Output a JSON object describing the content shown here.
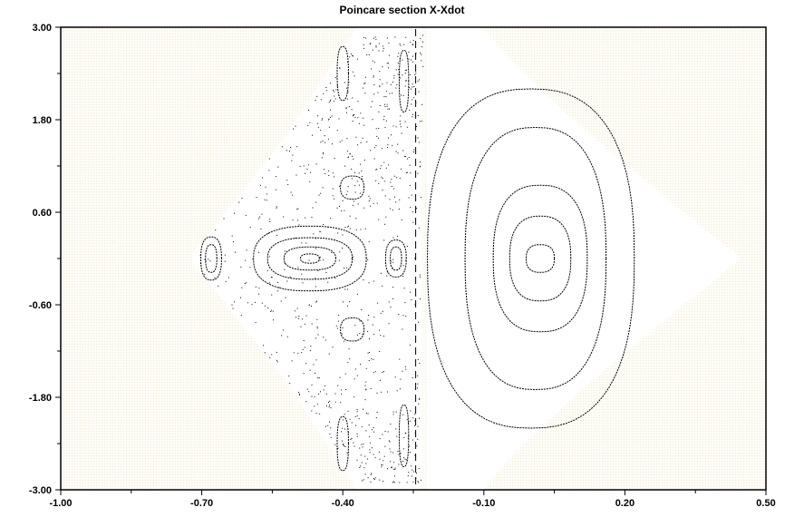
{
  "chart_data": {
    "type": "scatter",
    "title": "Poincare section X-Xdot",
    "xlabel": "",
    "ylabel": "",
    "xlim": [
      -1.0,
      0.5
    ],
    "ylim": [
      -3.0,
      3.0
    ],
    "x_ticks": [
      -1.0,
      -0.7,
      -0.4,
      -0.1,
      0.2,
      0.5
    ],
    "x_tick_labels": [
      "-1.00",
      "-0.70",
      "-0.40",
      "-0.10",
      "0.20",
      "0.50"
    ],
    "y_ticks": [
      3.0,
      1.8,
      0.6,
      -0.6,
      -1.8,
      -3.0
    ],
    "y_tick_labels": [
      "3.00",
      "1.80",
      "0.60",
      "-0.60",
      "-1.80",
      "-3.00"
    ],
    "grid": false,
    "legend": "none",
    "plot_background": "#f4e8cc",
    "point_color": "#000000",
    "orbits": [
      {
        "cx": 0.02,
        "cy": 0.0,
        "a": 0.03,
        "b": 0.18
      },
      {
        "cx": 0.02,
        "cy": 0.0,
        "a": 0.065,
        "b": 0.55
      },
      {
        "cx": 0.02,
        "cy": 0.0,
        "a": 0.1,
        "b": 0.95
      },
      {
        "cx": 0.01,
        "cy": 0.0,
        "a": 0.15,
        "b": 1.7
      },
      {
        "cx": 0.0,
        "cy": 0.0,
        "a": 0.22,
        "b": 2.2
      },
      {
        "cx": -0.47,
        "cy": 0.0,
        "a": 0.02,
        "b": 0.06
      },
      {
        "cx": -0.47,
        "cy": 0.0,
        "a": 0.055,
        "b": 0.15
      },
      {
        "cx": -0.47,
        "cy": 0.0,
        "a": 0.09,
        "b": 0.27
      },
      {
        "cx": -0.47,
        "cy": 0.0,
        "a": 0.12,
        "b": 0.42
      },
      {
        "cx": -0.68,
        "cy": 0.0,
        "a": 0.012,
        "b": 0.18
      },
      {
        "cx": -0.68,
        "cy": 0.0,
        "a": 0.022,
        "b": 0.28
      },
      {
        "cx": -0.287,
        "cy": 0.0,
        "a": 0.012,
        "b": 0.15
      },
      {
        "cx": -0.287,
        "cy": 0.0,
        "a": 0.022,
        "b": 0.24
      },
      {
        "cx": -0.38,
        "cy": 0.92,
        "a": 0.025,
        "b": 0.15
      },
      {
        "cx": -0.38,
        "cy": -0.92,
        "a": 0.025,
        "b": 0.15
      },
      {
        "cx": -0.4,
        "cy": 2.4,
        "a": 0.012,
        "b": 0.35
      },
      {
        "cx": -0.4,
        "cy": -2.4,
        "a": 0.012,
        "b": 0.35
      },
      {
        "cx": -0.27,
        "cy": 2.3,
        "a": 0.01,
        "b": 0.4
      },
      {
        "cx": -0.27,
        "cy": -2.3,
        "a": 0.01,
        "b": 0.4
      }
    ]
  }
}
